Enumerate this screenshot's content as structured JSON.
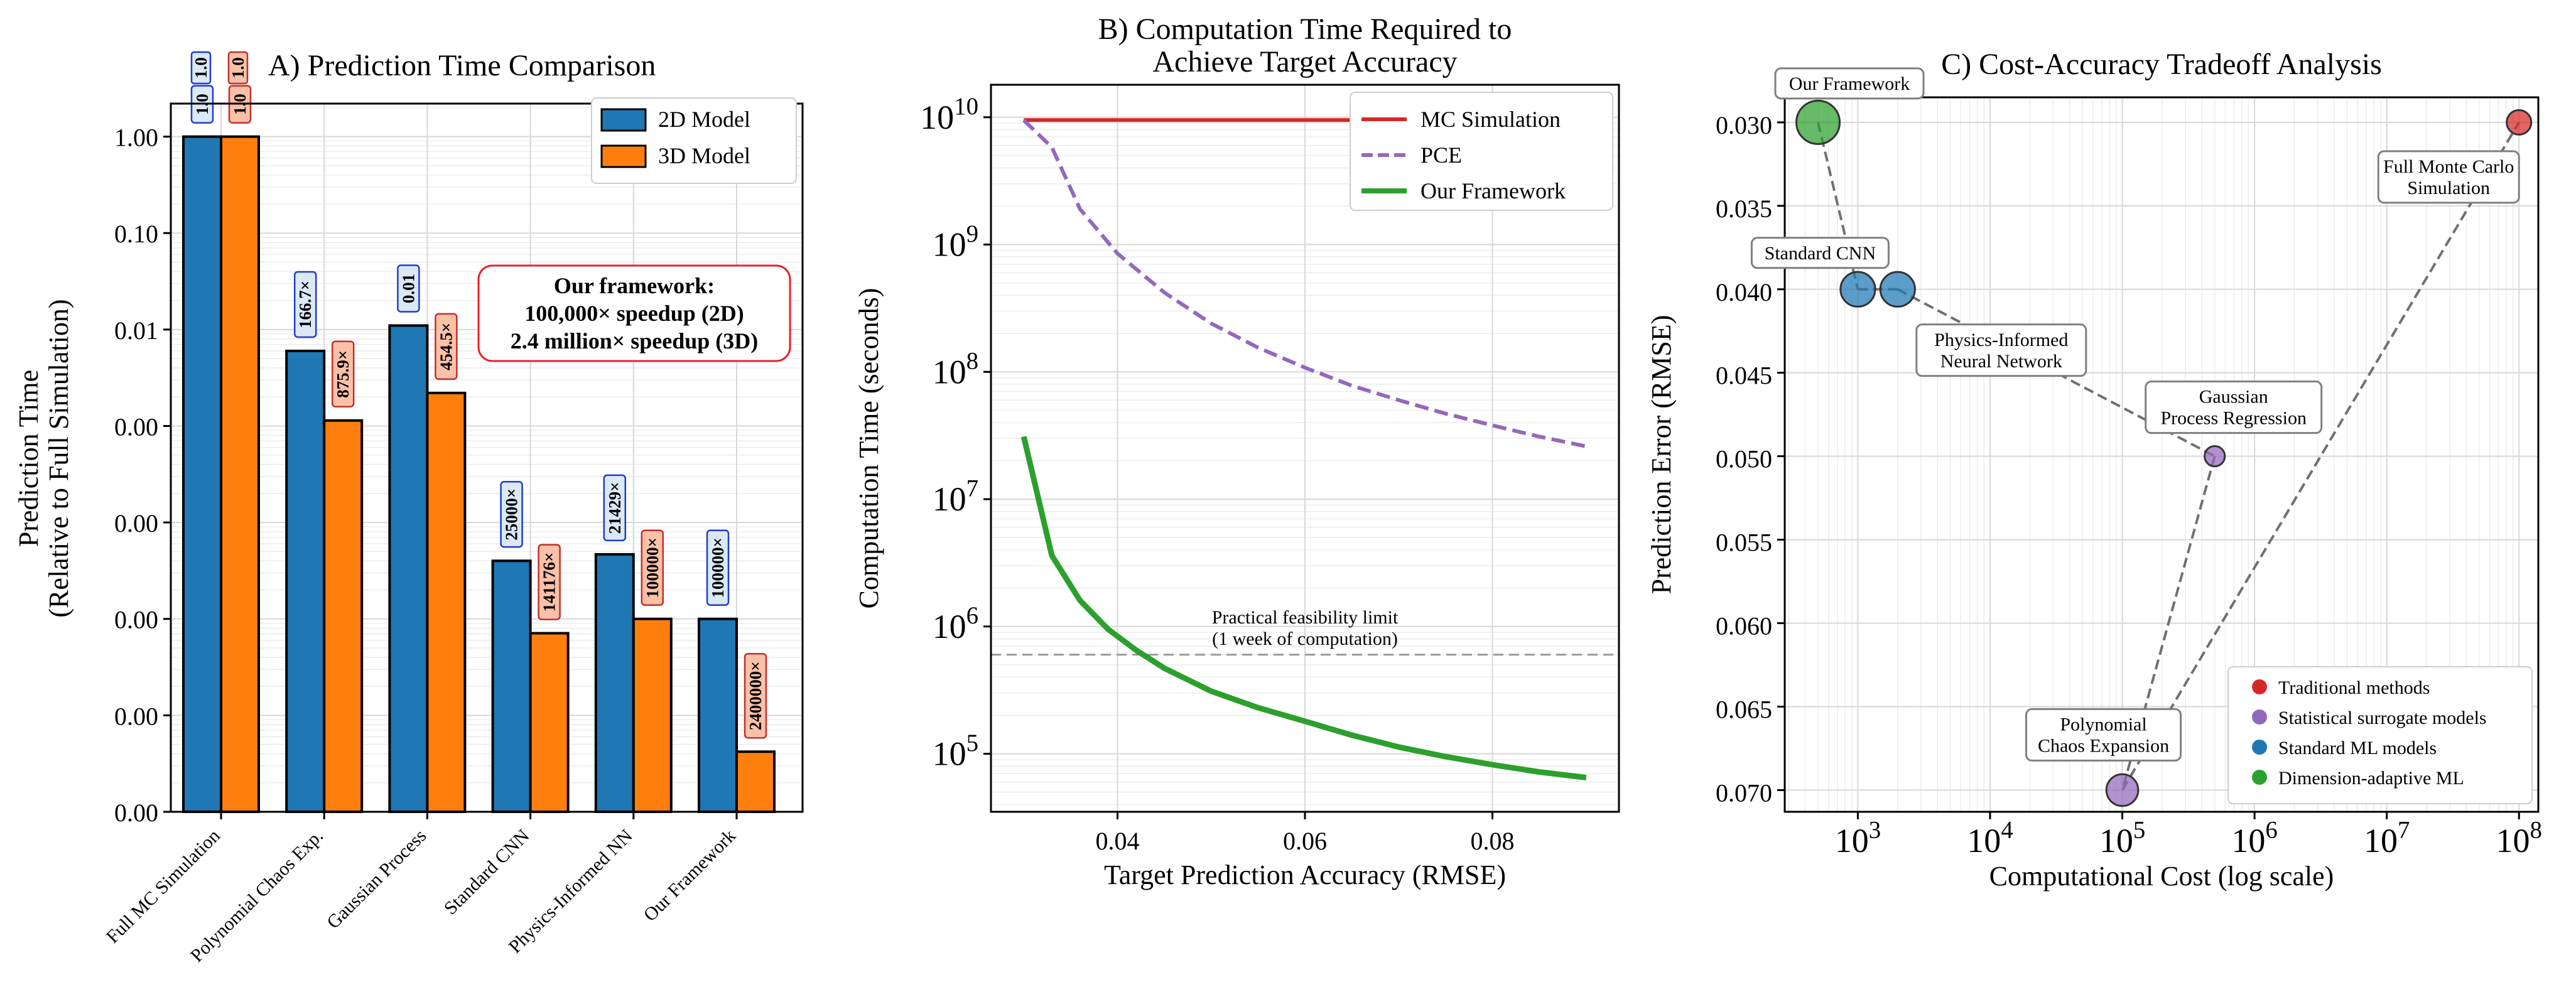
{
  "chart_data": [
    {
      "type": "bar",
      "title": "A) Prediction Time Comparison",
      "ylabel": "Prediction Time\n(Relative to Full Simulation)",
      "yscale": "log",
      "ylim": [
        1e-07,
        2.2
      ],
      "ytick_labels": [
        "1.00",
        "0.10",
        "0.01",
        "0.00",
        "0.00",
        "0.00",
        "0.00",
        "0.00"
      ],
      "categories": [
        "Full MC Simulation",
        "Polynomial Chaos Exp.",
        "Gaussian Process",
        "Standard CNN",
        "Physics-Informed NN",
        "Our Framework"
      ],
      "series": [
        {
          "name": "2D Model",
          "color": "#1f77b4",
          "values": [
            1.0,
            0.006,
            0.011,
            4e-05,
            4.67e-05,
            1e-05
          ],
          "labels": [
            "1.0",
            "166.7×",
            "0.01",
            "25000×",
            "21429×",
            "100000×"
          ]
        },
        {
          "name": "3D Model",
          "color": "#ff7f0e",
          "values": [
            1.0,
            0.00114,
            0.0022,
            7.1e-06,
            1e-05,
            4.2e-07
          ],
          "labels": [
            "1.0",
            "875.9×",
            "454.5×",
            "141176×",
            "100000×",
            "2400000×"
          ]
        }
      ],
      "annotation": {
        "lines": [
          "Our framework:",
          "100,000× speedup (2D)",
          "2.4 million× speedup (3D)"
        ],
        "color": "#e8212b"
      },
      "legend": "top-right"
    },
    {
      "type": "line",
      "title": "B) Computation Time Required to\nAchieve Target Accuracy",
      "xlabel": "Target Prediction Accuracy (RMSE)",
      "ylabel": "Computation Time (seconds)",
      "yscale": "log",
      "xlim": [
        0.0265,
        0.0935
      ],
      "ylim": [
        35000,
        18000000000
      ],
      "xticks": [
        0.04,
        0.06,
        0.08
      ],
      "xtick_labels": [
        "0.04",
        "0.06",
        "0.08"
      ],
      "yticks": [
        100000,
        1000000,
        10000000,
        100000000,
        1000000000,
        10000000000
      ],
      "ytick_labels": [
        {
          "base": "10",
          "exp": "5"
        },
        {
          "base": "10",
          "exp": "6"
        },
        {
          "base": "10",
          "exp": "7"
        },
        {
          "base": "10",
          "exp": "8"
        },
        {
          "base": "10",
          "exp": "9"
        },
        {
          "base": "10",
          "exp": "10"
        }
      ],
      "series": [
        {
          "name": "MC Simulation",
          "color": "#d62728",
          "style": "solid",
          "x": [
            0.03,
            0.09
          ],
          "y": [
            9500000000,
            9500000000
          ]
        },
        {
          "name": "PCE",
          "color": "#9467bd",
          "style": "dashed",
          "x": [
            0.03,
            0.033,
            0.036,
            0.04,
            0.045,
            0.05,
            0.055,
            0.06,
            0.065,
            0.07,
            0.075,
            0.08,
            0.085,
            0.09
          ],
          "y": [
            9500000000,
            5800000000,
            1900000000,
            850000000,
            420000000,
            240000000,
            155000000,
            108000000,
            78000000,
            60000000,
            47000000,
            38000000,
            31000000,
            26000000
          ]
        },
        {
          "name": "Our Framework",
          "color": "#2ca02c",
          "style": "solid",
          "x": [
            0.03,
            0.033,
            0.036,
            0.039,
            0.042,
            0.045,
            0.05,
            0.055,
            0.06,
            0.065,
            0.07,
            0.075,
            0.08,
            0.085,
            0.09
          ],
          "y": [
            31000000,
            3600000,
            1600000,
            950000,
            650000,
            470000,
            310000,
            230000,
            180000,
            140000,
            113000,
            95000,
            82000,
            72000,
            65000
          ]
        }
      ],
      "hline": {
        "y": 600000,
        "label": [
          "Practical feasibility limit",
          "(1 week of computation)"
        ]
      },
      "legend": "top-right"
    },
    {
      "type": "scatter",
      "title": "C) Cost-Accuracy Tradeoff Analysis",
      "xlabel": "Computational Cost (log scale)",
      "ylabel": "Prediction Error (RMSE)",
      "xscale": "log",
      "xlim": [
        280,
        140000000
      ],
      "ylim": [
        0.0713,
        0.0285
      ],
      "ytick_values": [
        0.03,
        0.035,
        0.04,
        0.045,
        0.05,
        0.055,
        0.06,
        0.065,
        0.07
      ],
      "ytick_labels": [
        "0.030",
        "0.035",
        "0.040",
        "0.045",
        "0.050",
        "0.055",
        "0.060",
        "0.065",
        "0.070"
      ],
      "xticks": [
        1000,
        10000,
        100000,
        1000000,
        10000000,
        100000000
      ],
      "xtick_labels": [
        {
          "base": "10",
          "exp": "3"
        },
        {
          "base": "10",
          "exp": "4"
        },
        {
          "base": "10",
          "exp": "5"
        },
        {
          "base": "10",
          "exp": "6"
        },
        {
          "base": "10",
          "exp": "7"
        },
        {
          "base": "10",
          "exp": "8"
        }
      ],
      "points": [
        {
          "label": "Our Framework",
          "x": 500,
          "y": 0.03,
          "group": "Dimension-adaptive ML",
          "color": "#2ca02c",
          "size": 3
        },
        {
          "label": "Standard CNN",
          "x": 1000,
          "y": 0.04,
          "group": "Standard ML models",
          "color": "#1f77b4",
          "size": 2.4
        },
        {
          "label": "Physics-Informed\nNeural Network",
          "x": 2000,
          "y": 0.04,
          "group": "Standard ML models",
          "color": "#1f77b4",
          "size": 2.4
        },
        {
          "label": "Gaussian\nProcess Regression",
          "x": 500000,
          "y": 0.05,
          "group": "Statistical surrogate models",
          "color": "#9467bd",
          "size": 1.4
        },
        {
          "label": "Polynomial\nChaos Expansion",
          "x": 100000,
          "y": 0.07,
          "group": "Statistical surrogate models",
          "color": "#9467bd",
          "size": 2.2
        },
        {
          "label": "Full Monte Carlo\nSimulation",
          "x": 100000000,
          "y": 0.03,
          "group": "Traditional methods",
          "color": "#d62728",
          "size": 1.7
        }
      ],
      "connections": [
        [
          0,
          1
        ],
        [
          1,
          2
        ],
        [
          2,
          3
        ],
        [
          3,
          4
        ],
        [
          4,
          5
        ]
      ],
      "legend_entries": [
        {
          "label": "Traditional methods",
          "color": "#d62728"
        },
        {
          "label": "Statistical surrogate models",
          "color": "#9467bd"
        },
        {
          "label": "Standard ML models",
          "color": "#1f77b4"
        },
        {
          "label": "Dimension-adaptive ML",
          "color": "#2ca02c"
        }
      ],
      "legend": "bottom-right"
    }
  ]
}
